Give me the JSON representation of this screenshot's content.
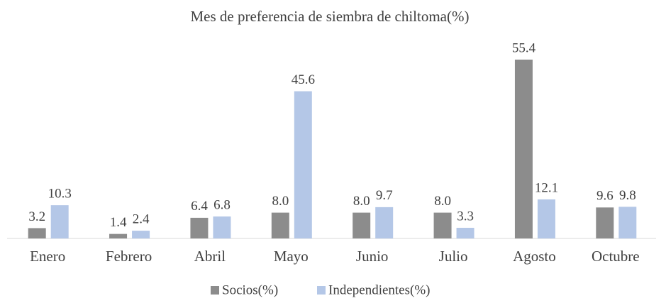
{
  "chart_data": {
    "type": "bar",
    "title": "Mes de preferencia de siembra de chiltoma(%)",
    "categories": [
      "Enero",
      "Febrero",
      "Abril",
      "Mayo",
      "Junio",
      "Julio",
      "Agosto",
      "Octubre"
    ],
    "series": [
      {
        "name": "Socios(%)",
        "color": "#8c8c8c",
        "values": [
          3.2,
          1.4,
          6.4,
          8,
          8,
          8,
          55.4,
          9.6
        ],
        "value_labels": [
          "3.2",
          "1.4",
          "6.4",
          "8.0",
          "8.0",
          "8.0",
          "55.4",
          "9.6"
        ]
      },
      {
        "name": "Independientes(%)",
        "color": "#b4c7e7",
        "values": [
          10.3,
          2.4,
          6.8,
          45.6,
          9.7,
          3.3,
          12.1,
          9.8
        ],
        "value_labels": [
          "10.3",
          "2.4",
          "6.8",
          "45.6",
          "9.7",
          "3.3",
          "12.1",
          "9.8"
        ]
      }
    ]
  }
}
